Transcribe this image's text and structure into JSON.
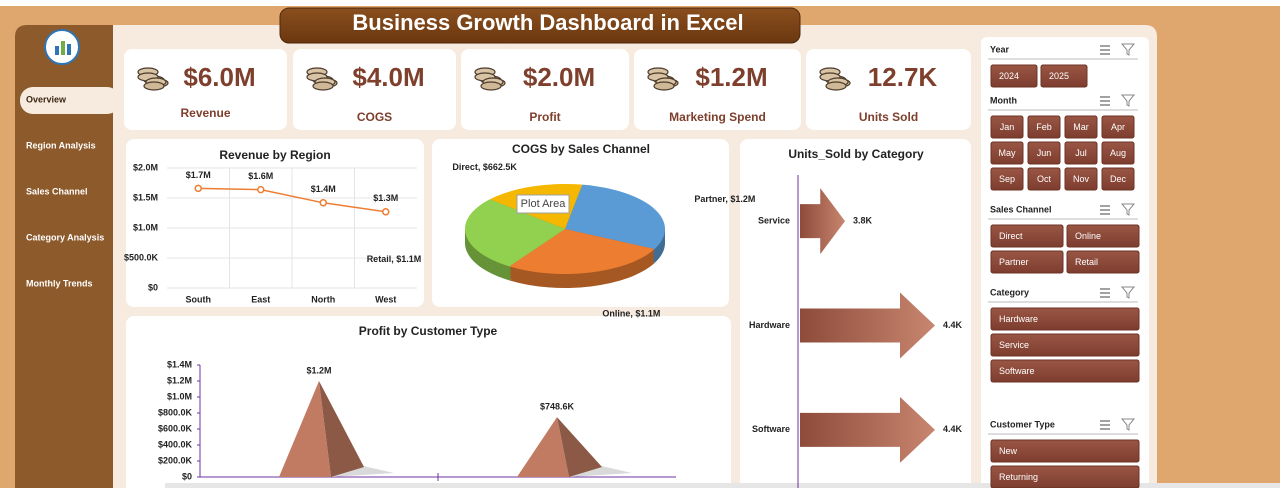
{
  "header": {
    "title": "Business Growth Dashboard in Excel"
  },
  "nav": [
    "Overview",
    "Region Analysis",
    "Sales Channel",
    "Category Analysis",
    "Monthly Trends"
  ],
  "kpis": [
    {
      "value": "$6.0M",
      "label": "Revenue"
    },
    {
      "value": "$4.0M",
      "label": "COGS"
    },
    {
      "value": "$2.0M",
      "label": "Profit"
    },
    {
      "value": "$1.2M",
      "label": "Marketing Spend"
    },
    {
      "value": "12.7K",
      "label": "Units Sold"
    }
  ],
  "chart_data": [
    {
      "type": "line",
      "title": "Revenue by Region",
      "categories": [
        "South",
        "East",
        "North",
        "West"
      ],
      "values": [
        1660000,
        1640000,
        1420000,
        1270000
      ],
      "value_labels": [
        "$1.7M",
        "$1.6M",
        "$1.4M",
        "$1.3M"
      ],
      "color": "#ed7d31",
      "ylim": [
        0,
        2000000
      ],
      "yticks": [
        {
          "value": 0,
          "label": "$0"
        },
        {
          "value": 500000,
          "label": "$500.0K"
        },
        {
          "value": 1000000,
          "label": "$1.0M"
        },
        {
          "value": 1500000,
          "label": "$1.5M"
        },
        {
          "value": 2000000,
          "label": "$2.0M"
        }
      ],
      "grid": true
    },
    {
      "type": "pie",
      "title": "COGS by Sales Channel",
      "categories": [
        "Direct",
        "Partner",
        "Online",
        "Retail"
      ],
      "values": [
        662500,
        1200000,
        1100000,
        1100000
      ],
      "data_labels": [
        "Direct, $662.5K",
        "Partner, $1.2M",
        "Online, $1.1M",
        "Retail, $1.1M"
      ],
      "colors": [
        "#f5b700",
        "#5b9bd5",
        "#ed7d31",
        "#92d050"
      ],
      "tooltip": "Plot Area"
    },
    {
      "type": "bar",
      "orientation": "horizontal",
      "shape": "arrow",
      "title": "Units_Sold by Category",
      "categories": [
        "Service",
        "Hardware",
        "Software"
      ],
      "values": [
        3800,
        4400,
        4400
      ],
      "value_labels": [
        "3.8K",
        "4.4K",
        "4.4K"
      ],
      "color": "#a8614d",
      "xlim": [
        3500,
        4500
      ]
    },
    {
      "type": "bar",
      "shape": "pyramid",
      "title": "Profit by Customer Type",
      "categories": [
        null,
        null
      ],
      "values": [
        1200000,
        748600
      ],
      "value_labels": [
        "$1.2M",
        "$748.6K"
      ],
      "color": "#c27b63",
      "ylim": [
        0,
        1400000
      ],
      "yticks": [
        {
          "value": 0,
          "label": "$0"
        },
        {
          "value": 200000,
          "label": "$200.0K"
        },
        {
          "value": 400000,
          "label": "$400.0K"
        },
        {
          "value": 600000,
          "label": "$600.0K"
        },
        {
          "value": 800000,
          "label": "$800.0K"
        },
        {
          "value": 1000000,
          "label": "$1.0M"
        },
        {
          "value": 1200000,
          "label": "$1.2M"
        },
        {
          "value": 1400000,
          "label": "$1.4M"
        }
      ],
      "grid": false
    }
  ],
  "slicers": [
    {
      "title": "Year",
      "items": [
        "2024",
        "2025"
      ]
    },
    {
      "title": "Month",
      "items": [
        "Jan",
        "Feb",
        "Mar",
        "Apr",
        "May",
        "Jun",
        "Jul",
        "Aug",
        "Sep",
        "Oct",
        "Nov",
        "Dec"
      ]
    },
    {
      "title": "Sales Channel",
      "items": [
        "Direct",
        "Online",
        "Partner",
        "Retail"
      ]
    },
    {
      "title": "Category",
      "items": [
        "Hardware",
        "Service",
        "Software"
      ]
    },
    {
      "title": "Customer Type",
      "items": [
        "New",
        "Returning"
      ]
    }
  ]
}
